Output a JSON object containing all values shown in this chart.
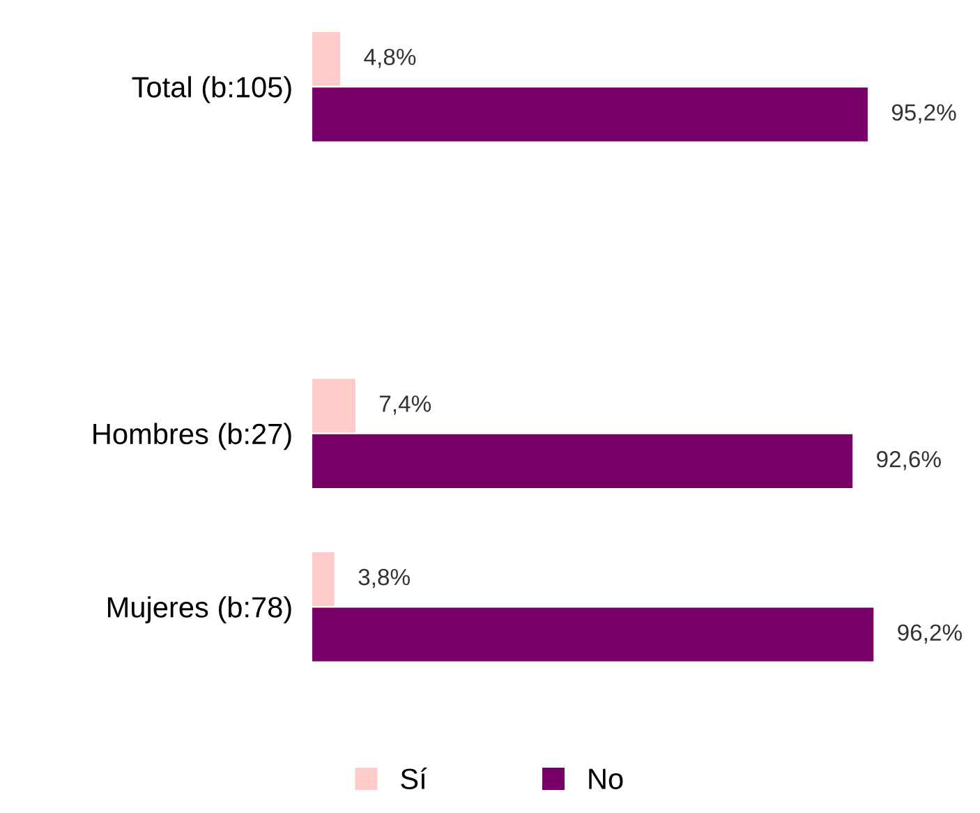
{
  "chart_data": {
    "type": "bar",
    "orientation": "horizontal",
    "categories": [
      "Total (b:105)",
      null,
      "Hombres (b:27)",
      "Mujeres (b:78)"
    ],
    "tick_labels": "y",
    "grid": false,
    "legend": "bottom",
    "series": [
      {
        "name": "Sí",
        "color": "#ffcccc",
        "values": [
          4.8,
          null,
          7.4,
          3.8
        ],
        "value_labels": [
          "4,8%",
          null,
          "7,4%",
          "3,8%"
        ]
      },
      {
        "name": "No",
        "color": "#770066",
        "values": [
          95.2,
          null,
          92.6,
          96.2
        ],
        "value_labels": [
          "95,2%",
          null,
          "92,6%",
          "96,2%"
        ]
      }
    ]
  }
}
